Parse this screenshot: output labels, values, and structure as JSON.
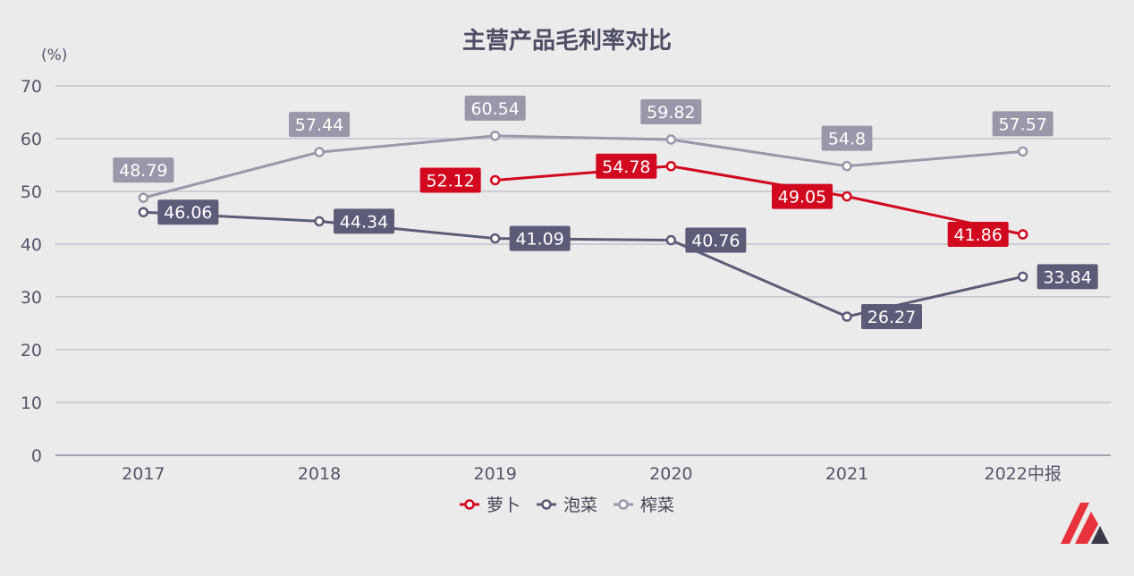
{
  "chart_data": {
    "type": "line",
    "title": "主营产品毛利率对比",
    "unit_label": "(%)",
    "categories": [
      "2017",
      "2018",
      "2019",
      "2020",
      "2021",
      "2022中报"
    ],
    "ylim": [
      0,
      70
    ],
    "yticks": [
      0,
      10,
      20,
      30,
      40,
      50,
      60,
      70
    ],
    "grid": true,
    "legend_position": "bottom",
    "series": [
      {
        "name": "萝卜",
        "color": "#d2081e",
        "values": [
          null,
          null,
          52.12,
          54.78,
          49.05,
          41.86
        ],
        "labels": [
          "",
          "",
          "52.12",
          "54.78",
          "49.05",
          "41.86"
        ],
        "label_side": "left"
      },
      {
        "name": "泡菜",
        "color": "#5c5c78",
        "values": [
          46.06,
          44.34,
          41.09,
          40.76,
          26.27,
          33.84
        ],
        "labels": [
          "46.06",
          "44.34",
          "41.09",
          "40.76",
          "26.27",
          "33.84"
        ],
        "label_side": "right"
      },
      {
        "name": "榨菜",
        "color": "#9898aa",
        "values": [
          48.79,
          57.44,
          60.54,
          59.82,
          54.8,
          57.57
        ],
        "labels": [
          "48.79",
          "57.44",
          "60.54",
          "59.82",
          "54.8",
          "57.57"
        ],
        "label_side": "above"
      }
    ]
  },
  "logo": {
    "name": "brand-logo",
    "colors": [
      "#e8323c",
      "#3a3a48"
    ]
  }
}
